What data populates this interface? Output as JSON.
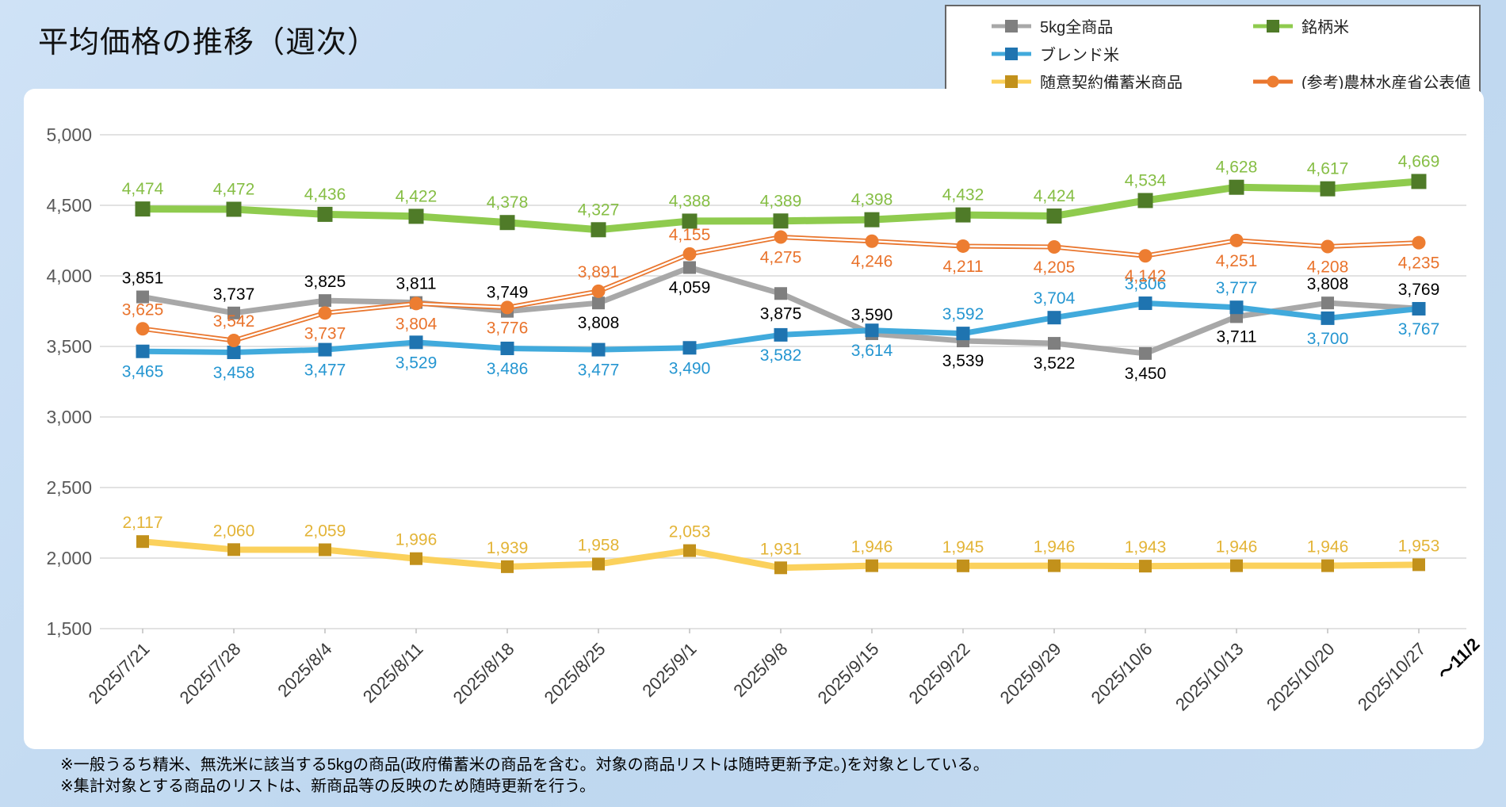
{
  "chart_data": {
    "type": "line",
    "title": "平均価格の推移（週次）",
    "xlabel": "",
    "ylabel": "",
    "ylim": [
      1500,
      5000
    ],
    "ytick_step": 500,
    "yticks": [
      "5,000",
      "4,500",
      "4,000",
      "3,500",
      "3,000",
      "2,500",
      "2,000",
      "1,500"
    ],
    "grid": true,
    "legend_position": "top-right",
    "categories": [
      "2025/7/21",
      "2025/7/28",
      "2025/8/4",
      "2025/8/11",
      "2025/8/18",
      "2025/8/25",
      "2025/9/1",
      "2025/9/8",
      "2025/9/15",
      "2025/9/22",
      "2025/9/29",
      "2025/10/6",
      "2025/10/13",
      "2025/10/20",
      "2025/10/27"
    ],
    "extra_axis_label": "～11/2",
    "series": [
      {
        "name": "5kg全商品",
        "slug": "all-5kg-products",
        "marker": "square",
        "line_color": "#A8A8A8",
        "marker_color": "#7F7F7F",
        "label_color": "#000000",
        "values": [
          3851,
          3737,
          3825,
          3811,
          3749,
          3808,
          4059,
          3875,
          3590,
          3539,
          3522,
          3450,
          3711,
          3808,
          3769
        ],
        "label_sides": [
          "above",
          "above",
          "above",
          "above",
          "above",
          "below",
          "below",
          "below",
          "above",
          "below",
          "below",
          "below",
          "below",
          "above",
          "above"
        ]
      },
      {
        "name": "銘柄米",
        "slug": "brand-rice",
        "marker": "square",
        "line_color": "#8FCB4E",
        "marker_color": "#4F7B28",
        "label_color": "#86BE45",
        "values": [
          4474,
          4472,
          4436,
          4422,
          4378,
          4327,
          4388,
          4389,
          4398,
          4432,
          4424,
          4534,
          4628,
          4617,
          4669
        ],
        "label_sides": [
          "above",
          "above",
          "above",
          "above",
          "above",
          "above",
          "above",
          "above",
          "above",
          "above",
          "above",
          "above",
          "above",
          "above",
          "above"
        ]
      },
      {
        "name": "ブレンド米",
        "slug": "blend-rice",
        "marker": "square",
        "line_color": "#41AADC",
        "marker_color": "#1F74B0",
        "label_color": "#2596D1",
        "values": [
          3465,
          3458,
          3477,
          3529,
          3486,
          3477,
          3490,
          3582,
          3614,
          3592,
          3704,
          3806,
          3777,
          3700,
          3767
        ],
        "label_sides": [
          "below",
          "below",
          "below",
          "below",
          "below",
          "below",
          "below",
          "below",
          "below",
          "above",
          "above",
          "above",
          "above",
          "below",
          "below"
        ]
      },
      {
        "name": "随意契約備蓄米商品",
        "slug": "reserve-rice-products",
        "marker": "square",
        "line_color": "#FBD15C",
        "marker_color": "#C2911B",
        "label_color": "#E3B437",
        "values": [
          2117,
          2060,
          2059,
          1996,
          1939,
          1958,
          2053,
          1931,
          1946,
          1945,
          1946,
          1943,
          1946,
          1946,
          1953
        ],
        "label_sides": [
          "above",
          "above",
          "above",
          "above",
          "above",
          "above",
          "above",
          "above",
          "above",
          "above",
          "above",
          "above",
          "above",
          "above",
          "above"
        ]
      },
      {
        "name": "(参考)農林水産省公表値",
        "slug": "maff-published-reference",
        "marker": "circle",
        "line_color": "#E9762E",
        "marker_color": "#ED7D31",
        "label_color": "#E9732C",
        "values": [
          3625,
          3542,
          3737,
          3804,
          3776,
          3891,
          4155,
          4275,
          4246,
          4211,
          4205,
          4142,
          4251,
          4208,
          4235
        ],
        "label_sides": [
          "above",
          "above",
          "below",
          "below",
          "below",
          "above",
          "above",
          "below",
          "below",
          "below",
          "below",
          "below",
          "below",
          "below",
          "below"
        ]
      }
    ]
  },
  "legend": {
    "items": [
      {
        "label": "5kg全商品",
        "series_index": 0
      },
      {
        "label": "銘柄米",
        "series_index": 1
      },
      {
        "label": "ブレンド米",
        "series_index": 2
      },
      {
        "label": "随意契約備蓄米商品",
        "series_index": 3
      },
      {
        "label": "(参考)農林水産省公表値",
        "series_index": 4
      }
    ]
  },
  "footnotes": [
    "※一般うるち精米、無洗米に該当する5kgの商品(政府備蓄米の商品を含む。対象の商品リストは随時更新予定。)を対象としている。",
    "※集計対象とする商品のリストは、新商品等の反映のため随時更新を行う。"
  ],
  "colors": {
    "background": "#C3DAF1",
    "panel": "#FFFFFF",
    "grid": "#D9D9D9",
    "y_tick_label": "#595959",
    "x_tick_label": "#3a3a3a"
  }
}
